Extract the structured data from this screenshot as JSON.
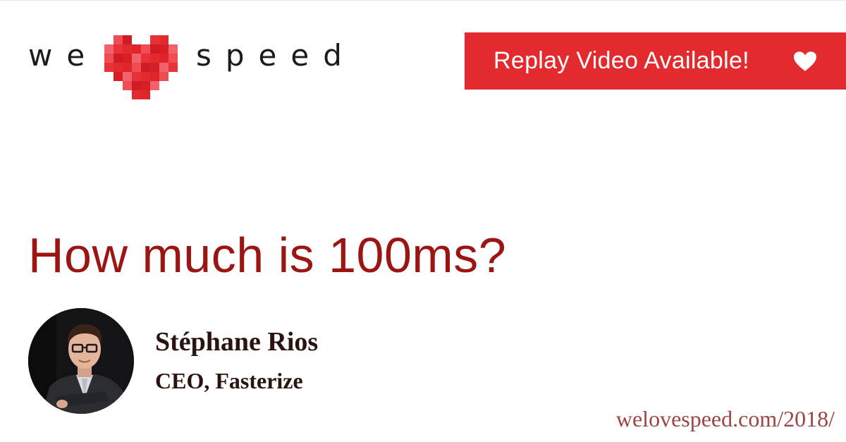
{
  "logo": {
    "word_left": "we",
    "heart_icon": "pixel-heart-icon",
    "word_right": "speed"
  },
  "banner": {
    "label": "Replay Video Available!",
    "icon": "heart-icon",
    "color": "#e32a2e"
  },
  "talk": {
    "title": "How much is 100ms?"
  },
  "speaker": {
    "name": "Stéphane Rios",
    "role": "CEO, Fasterize"
  },
  "footer": {
    "url": "welovespeed.com/2018/"
  },
  "colors": {
    "title": "#9b1512",
    "text": "#2a1410",
    "url": "#9c4545"
  }
}
